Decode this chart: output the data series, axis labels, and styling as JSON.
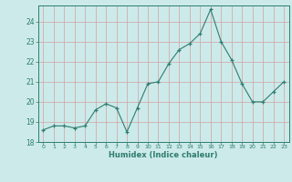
{
  "x": [
    0,
    1,
    2,
    3,
    4,
    5,
    6,
    7,
    8,
    9,
    10,
    11,
    12,
    13,
    14,
    15,
    16,
    17,
    18,
    19,
    20,
    21,
    22,
    23
  ],
  "y": [
    18.6,
    18.8,
    18.8,
    18.7,
    18.8,
    19.6,
    19.9,
    19.7,
    18.5,
    19.7,
    20.9,
    21.0,
    21.9,
    22.6,
    22.9,
    23.4,
    24.6,
    23.0,
    22.1,
    20.9,
    20.0,
    20.0,
    20.5,
    21.0
  ],
  "xlabel": "Humidex (Indice chaleur)",
  "xlim": [
    -0.5,
    23.5
  ],
  "ylim": [
    18.0,
    24.8
  ],
  "yticks": [
    18,
    19,
    20,
    21,
    22,
    23,
    24
  ],
  "xticks": [
    0,
    1,
    2,
    3,
    4,
    5,
    6,
    7,
    8,
    9,
    10,
    11,
    12,
    13,
    14,
    15,
    16,
    17,
    18,
    19,
    20,
    21,
    22,
    23
  ],
  "line_color": "#2e7d6e",
  "bg_color": "#cceaea",
  "grid_pink": "#d4a0a0",
  "grid_teal": "#aacccc"
}
